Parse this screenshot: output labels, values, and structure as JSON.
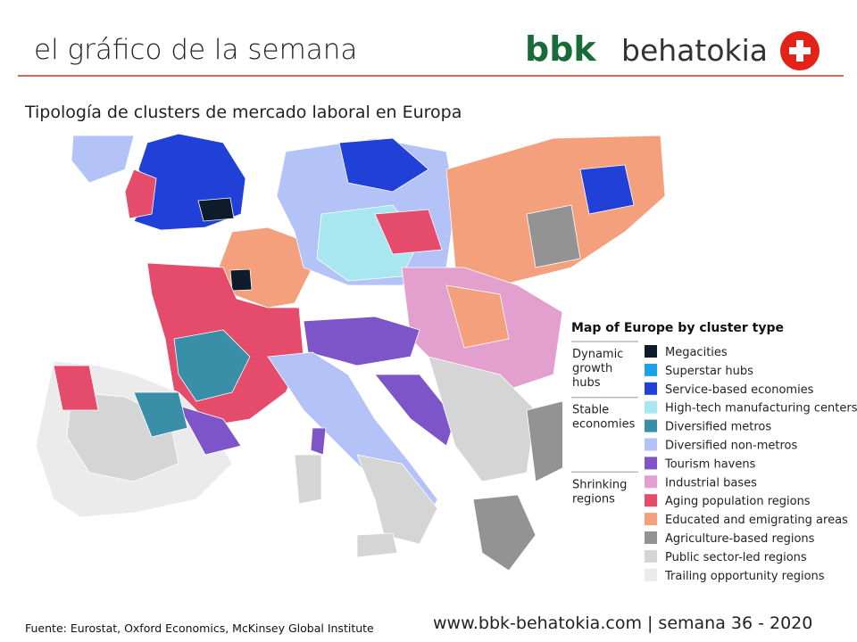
{
  "header": {
    "title": "el gráfico de la semana",
    "logo_brand": "bbk",
    "logo_name": "behatokia"
  },
  "subtitle": "Tipología de clusters de mercado laboral en Europa",
  "legend": {
    "title": "Map of Europe by cluster type",
    "groups": [
      {
        "lines": [
          "Dynamic",
          "growth",
          "hubs"
        ]
      },
      {
        "lines": [
          "Stable",
          "economies"
        ]
      },
      {
        "lines": [
          "Shrinking",
          "regions"
        ]
      }
    ],
    "items": [
      {
        "label": "Megacities",
        "color": "#0d1b2a"
      },
      {
        "label": "Superstar hubs",
        "color": "#1aa3e8"
      },
      {
        "label": "Service-based economies",
        "color": "#2040d8"
      },
      {
        "label": "High-tech manufacturing centers",
        "color": "#a8e6f0"
      },
      {
        "label": "Diversified metros",
        "color": "#3a8fa8"
      },
      {
        "label": "Diversified non-metros",
        "color": "#b3c2f7"
      },
      {
        "label": "Tourism havens",
        "color": "#7e55c8"
      },
      {
        "label": "Industrial bases",
        "color": "#e3a0cf"
      },
      {
        "label": "Aging population regions",
        "color": "#e54b6b"
      },
      {
        "label": "Educated and emigrating areas",
        "color": "#f4a07c"
      },
      {
        "label": "Agriculture-based regions",
        "color": "#939393"
      },
      {
        "label": "Public sector-led regions",
        "color": "#d5d5d5"
      },
      {
        "label": "Trailing opportunity regions",
        "color": "#ebebeb"
      }
    ]
  },
  "footer": {
    "source": "Fuente:  Eurostat, Oxford Economics,  McKinsey Global Institute",
    "site": "www.bbk-behatokia.com | semana 36 - 2020"
  }
}
